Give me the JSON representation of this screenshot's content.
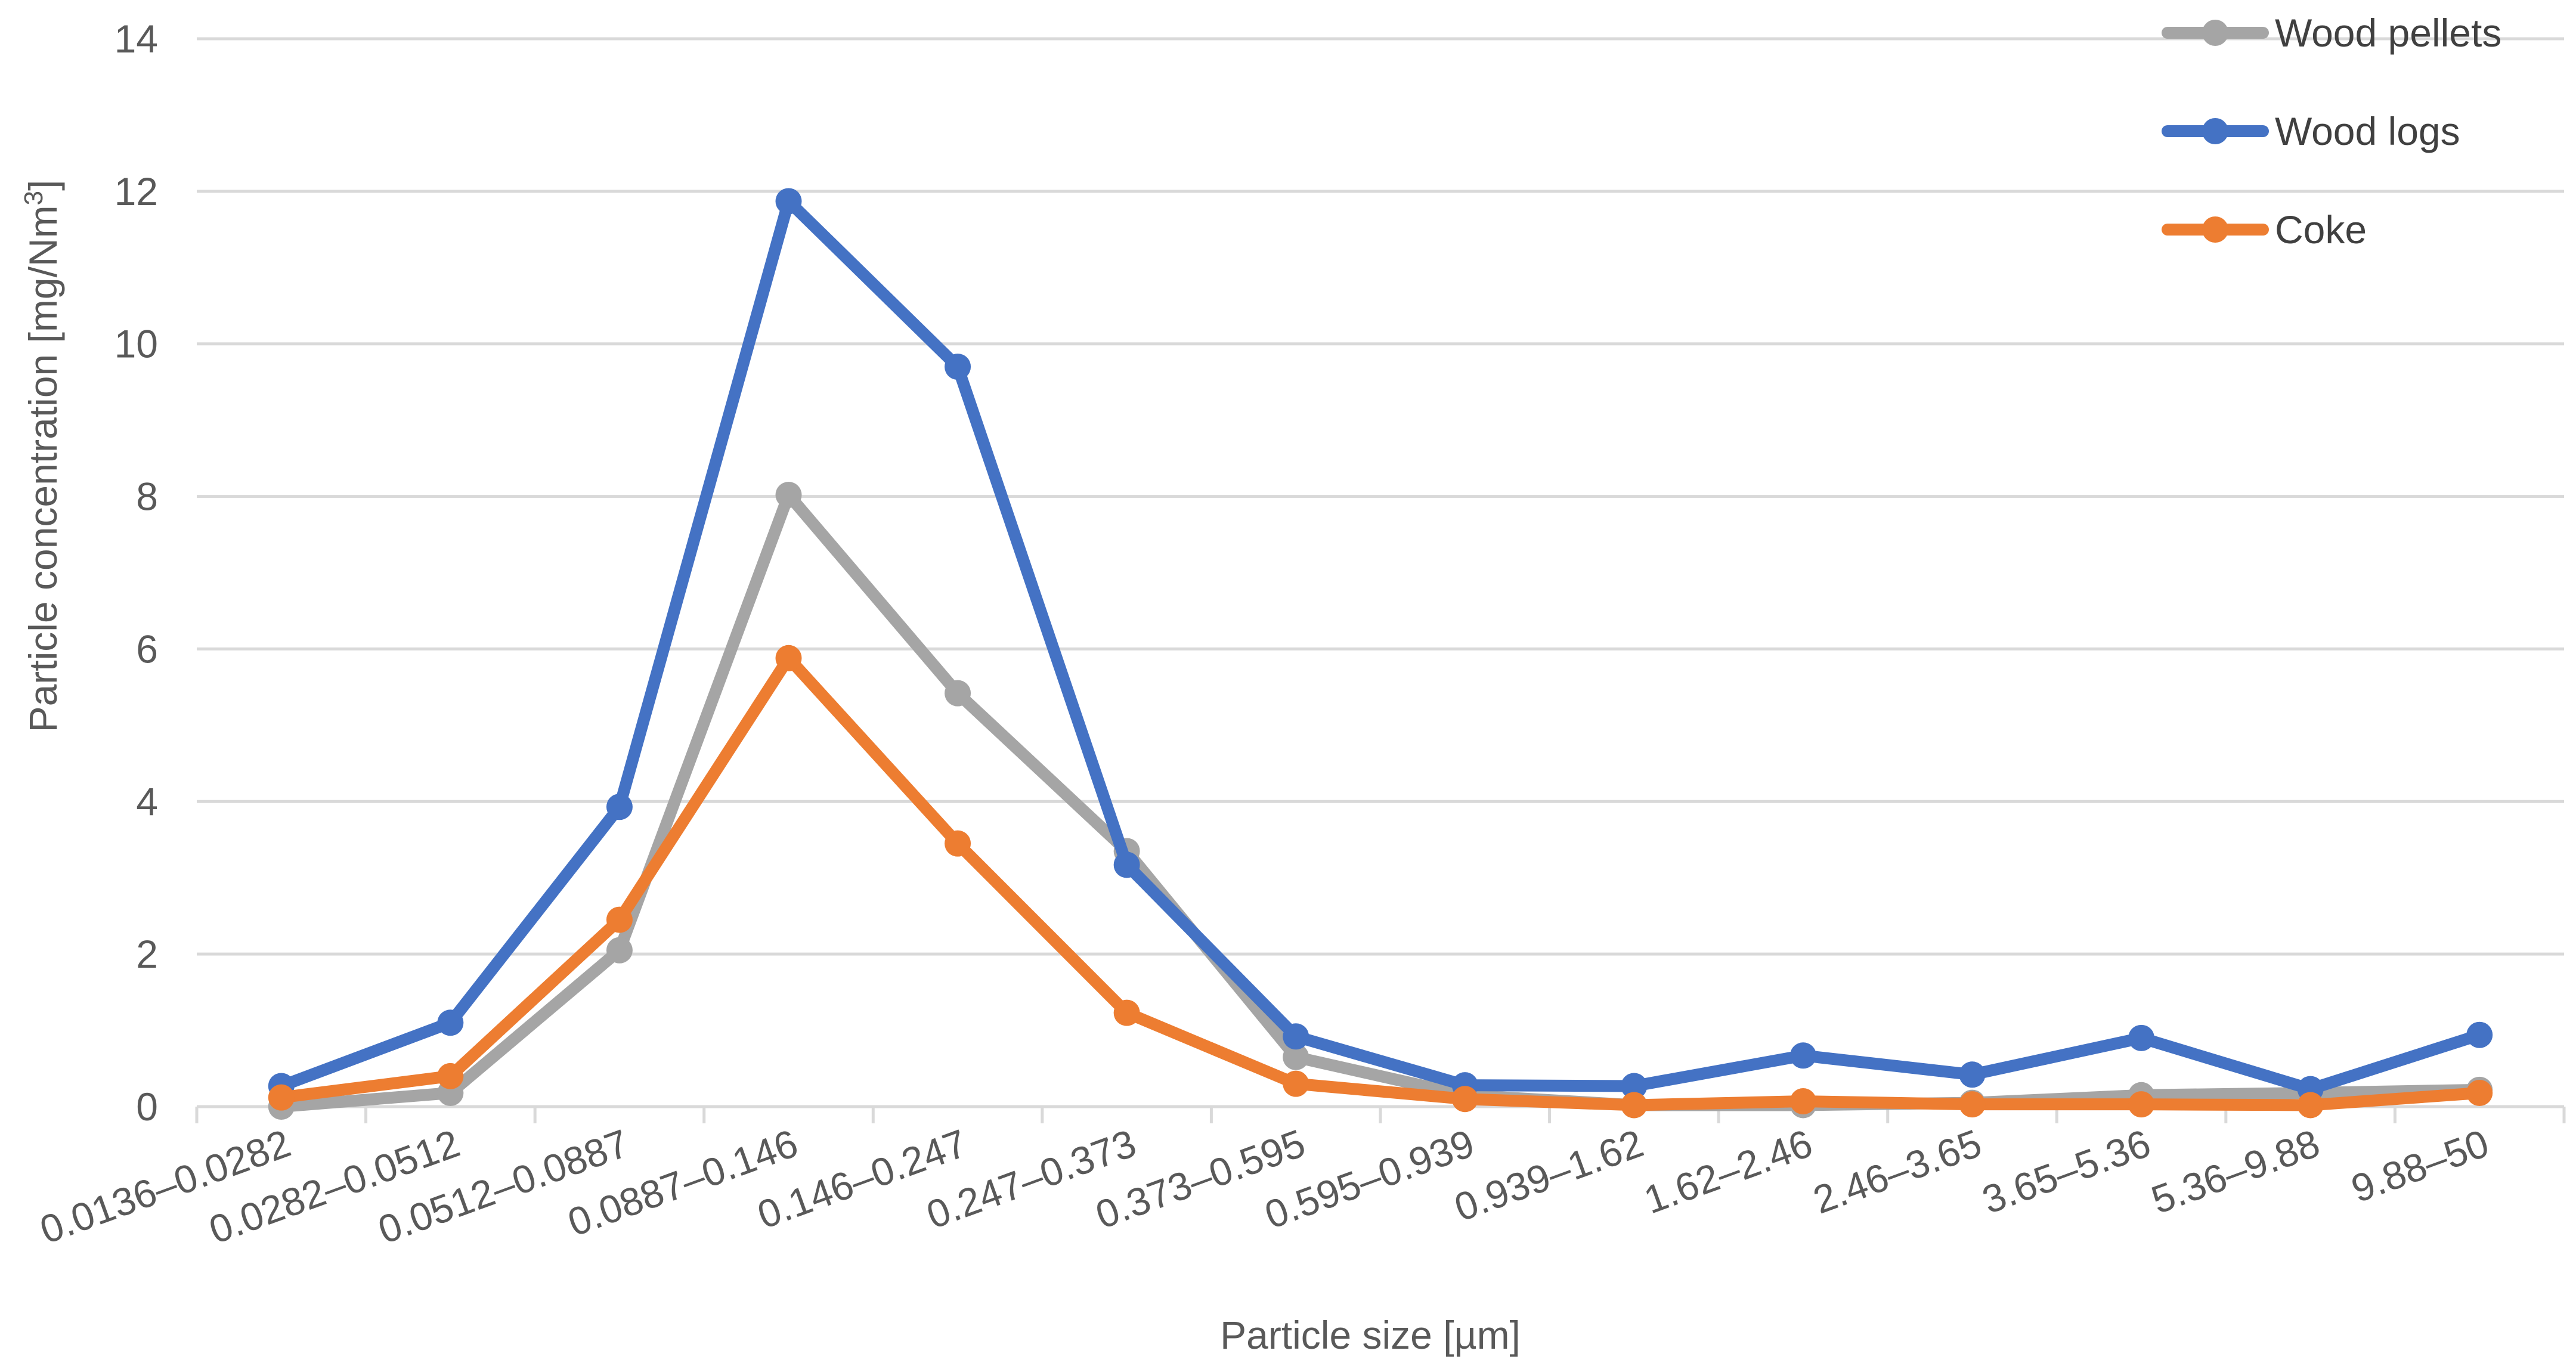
{
  "chart_data": {
    "type": "line",
    "xlabel": "Particle size [µm]",
    "ylabel": "Particle concentration [mg/Nm",
    "ylabel_sup": "3",
    "ylabel_end": "]",
    "ylim": [
      0,
      14
    ],
    "yticks": [
      0,
      2,
      4,
      6,
      8,
      10,
      12,
      14
    ],
    "grid": "horizontal",
    "legend_position": "top-right",
    "categories": [
      "0.0136–0.0282",
      "0.0282–0.0512",
      "0.0512–0.0887",
      "0.0887–0.146",
      "0.146–0.247",
      "0.247–0.373",
      "0.373–0.595",
      "0.595–0.939",
      "0.939–1.62",
      "1.62–2.46",
      "2.46–3.65",
      "3.65–5.36",
      "5.36–9.88",
      "9.88–50"
    ],
    "series": [
      {
        "name": "Wood pellets",
        "color": "#A5A5A5",
        "values": [
          0.0,
          0.18,
          2.05,
          8.02,
          5.42,
          3.35,
          0.65,
          0.15,
          0.02,
          0.02,
          0.05,
          0.15,
          0.18,
          0.22
        ]
      },
      {
        "name": "Wood logs",
        "color": "#4472C4",
        "values": [
          0.27,
          1.1,
          3.93,
          11.87,
          9.7,
          3.17,
          0.92,
          0.28,
          0.27,
          0.67,
          0.42,
          0.9,
          0.23,
          0.94
        ]
      },
      {
        "name": "Coke",
        "color": "#ED7D31",
        "values": [
          0.12,
          0.4,
          2.45,
          5.88,
          3.45,
          1.23,
          0.3,
          0.1,
          0.02,
          0.07,
          0.03,
          0.03,
          0.02,
          0.18
        ]
      }
    ]
  }
}
